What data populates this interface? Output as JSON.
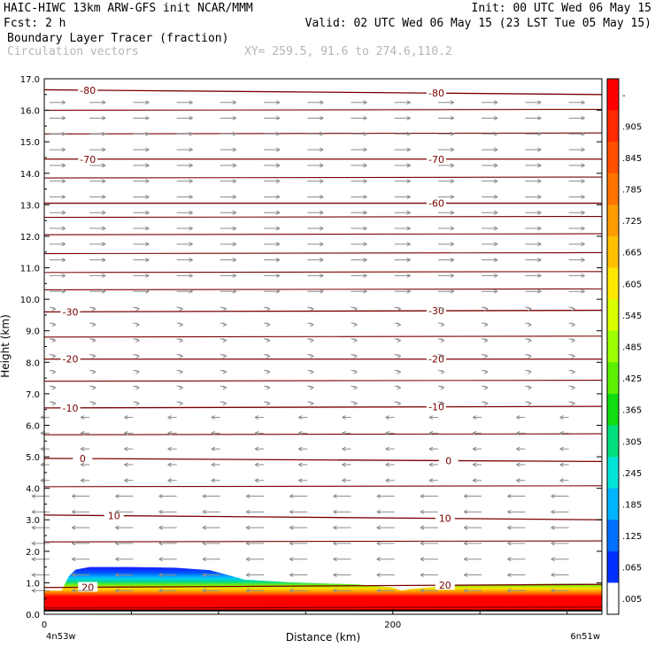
{
  "header": {
    "line1_left": "HAIC-HIWC 13km ARW-GFS init   NCAR/MMM",
    "line1_right": "Init: 00 UTC Wed 06 May 15",
    "line2_left": "Fcst:    2 h",
    "line2_right": "Valid: 02 UTC Wed 06 May 15 (23 LST Tue 05 May 15)",
    "line3_left": "Boundary Layer Tracer       (fraction)",
    "line4_left": "Circulation vectors",
    "line4_right": "XY= 259.5, 91.6 to 274.6,110.2"
  },
  "chart_data": {
    "type": "heatmap",
    "xlabel": "Distance (km)",
    "ylabel": "Height (km)",
    "xlim": [
      0,
      320
    ],
    "ylim": [
      0,
      17
    ],
    "x_ticks": [
      {
        "value": 0,
        "label": "0"
      },
      {
        "value": 200,
        "label": "200"
      }
    ],
    "x_endpoint_labels": {
      "left": "4n53w",
      "right": "6n51w"
    },
    "y_ticks": [
      0,
      1,
      2,
      3,
      4,
      5,
      6,
      7,
      8,
      9,
      10,
      11,
      12,
      13,
      14,
      15,
      16,
      17
    ],
    "y_tick_labels": [
      "0.0",
      "1.0",
      "2.0",
      "3.0",
      "4.0",
      "5.0",
      "6.0",
      "7.0",
      "8.0",
      "9.0",
      "10.0",
      "11.0",
      "12.0",
      "13.0",
      "14.0",
      "15.0",
      "16.0",
      "17.0"
    ],
    "colorbar": {
      "labels": [
        "-",
        ".905",
        ".845",
        ".785",
        ".725",
        ".665",
        ".605",
        ".545",
        ".485",
        ".425",
        ".365",
        ".305",
        ".245",
        ".185",
        ".125",
        ".065",
        ".005"
      ],
      "colors": [
        "#ff0000",
        "#ff2a00",
        "#ff5000",
        "#ff7400",
        "#ff9c00",
        "#ffc000",
        "#ffe800",
        "#d8ff00",
        "#9cff00",
        "#5cf000",
        "#12dc12",
        "#00e07c",
        "#00e4d8",
        "#00b4ff",
        "#0070ff",
        "#0030ff",
        "#ffffff"
      ]
    },
    "tracer_top_km": {
      "x": [
        0,
        10,
        14,
        18,
        26,
        50,
        75,
        95,
        115,
        140,
        160,
        180,
        200,
        205,
        210,
        230,
        260,
        300,
        320
      ],
      "y": [
        0.75,
        0.75,
        1.2,
        1.42,
        1.5,
        1.5,
        1.48,
        1.4,
        1.1,
        1.02,
        0.98,
        0.95,
        0.85,
        0.75,
        0.8,
        0.9,
        0.95,
        0.97,
        0.97
      ]
    },
    "temperature_contours": [
      {
        "label": "-80",
        "y_left": 16.65,
        "y_right": 16.5,
        "label_positions_km": [
          25,
          225
        ]
      },
      {
        "label": "-70",
        "y_left": 14.45,
        "y_right": 14.45,
        "label_positions_km": [
          25,
          225
        ]
      },
      {
        "label": "-60",
        "y_left": 13.05,
        "y_right": 13.05,
        "label_positions_km": [
          225
        ]
      },
      {
        "label": "-30",
        "y_left": 9.6,
        "y_right": 9.65,
        "label_positions_km": [
          15,
          225
        ]
      },
      {
        "label": "-20",
        "y_left": 8.1,
        "y_right": 8.1,
        "label_positions_km": [
          15,
          225
        ]
      },
      {
        "label": "-10",
        "y_left": 6.55,
        "y_right": 6.6,
        "label_positions_km": [
          15,
          225
        ]
      },
      {
        "label": "0",
        "y_left": 4.95,
        "y_right": 4.85,
        "label_positions_km": [
          22,
          232
        ]
      },
      {
        "label": "10",
        "y_left": 3.15,
        "y_right": 3.0,
        "label_positions_km": [
          40,
          230
        ]
      },
      {
        "label": "20",
        "y_left": 0.85,
        "y_right": 0.95,
        "label_positions_km": [
          25,
          230
        ]
      }
    ],
    "unlabeled_isotherm_heights_km": [
      16.0,
      15.25,
      13.85,
      12.6,
      12.05,
      11.45,
      10.85,
      10.3,
      8.8,
      7.4,
      5.7,
      4.05,
      2.3,
      0.2
    ],
    "wind_vectors": {
      "columns_km": [
        3,
        26,
        51,
        76,
        101,
        126,
        151,
        176,
        201,
        226,
        251,
        276,
        301
      ],
      "bands": [
        {
          "z_min": 0.5,
          "z_max": 4.0,
          "u": -1.0,
          "w": 0.0
        },
        {
          "z_min": 4.0,
          "z_max": 6.5,
          "u": -0.5,
          "w": 0.0
        },
        {
          "z_min": 6.5,
          "z_max": 10.0,
          "u": 0.35,
          "w": -0.1
        },
        {
          "z_min": 10.0,
          "z_max": 17.0,
          "u": 0.9,
          "w": 0.0
        }
      ]
    }
  },
  "colors": {
    "contour": "#7a0000",
    "vector": "#8c8c8c"
  }
}
